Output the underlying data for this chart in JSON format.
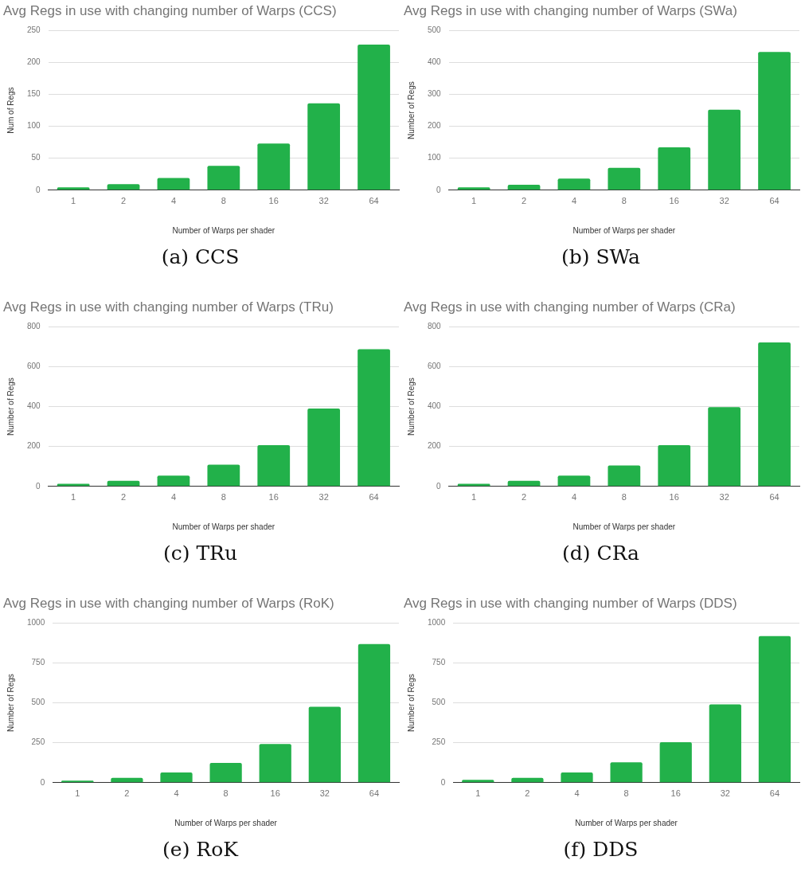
{
  "chart_data": [
    {
      "type": "bar",
      "title": "Avg Regs in use with changing number of Warps (CCS)",
      "xlabel": "Number of Warps per shader",
      "ylabel": "Num of Regs",
      "categories": [
        "1",
        "2",
        "4",
        "8",
        "16",
        "32",
        "64"
      ],
      "values": [
        4.5,
        9.5,
        19,
        38,
        73,
        136,
        228
      ],
      "color": "#22b14a",
      "ylim": [
        0,
        250
      ],
      "yticks": [
        0,
        50,
        100,
        150,
        200,
        250
      ],
      "grid": "y",
      "annotations": [
        "(a) CCS"
      ]
    },
    {
      "type": "bar",
      "title": "Avg Regs in use with changing number of Warps (SWa)",
      "xlabel": "Number of Warps per shader",
      "ylabel": "Number of Regs",
      "categories": [
        "1",
        "2",
        "4",
        "8",
        "16",
        "32",
        "64"
      ],
      "values": [
        9,
        17,
        36,
        70,
        134,
        252,
        433
      ],
      "color": "#22b14a",
      "ylim": [
        0,
        500
      ],
      "yticks": [
        0,
        100,
        200,
        300,
        400,
        500
      ],
      "grid": "y",
      "annotations": [
        "(b) SWa"
      ]
    },
    {
      "type": "bar",
      "title": "Avg Regs in use with changing number of Warps (TRu)",
      "xlabel": "Number of Warps per shader",
      "ylabel": "Number of Regs",
      "categories": [
        "1",
        "2",
        "4",
        "8",
        "16",
        "32",
        "64"
      ],
      "values": [
        13,
        28,
        54,
        109,
        207,
        390,
        688
      ],
      "color": "#22b14a",
      "ylim": [
        0,
        800
      ],
      "yticks": [
        0,
        200,
        400,
        600,
        800
      ],
      "grid": "y",
      "annotations": [
        "(c) TRu"
      ]
    },
    {
      "type": "bar",
      "title": "Avg Regs in use with changing number of Warps (CRa)",
      "xlabel": "Number of Warps per shader",
      "ylabel": "Number of Regs",
      "categories": [
        "1",
        "2",
        "4",
        "8",
        "16",
        "32",
        "64"
      ],
      "values": [
        13,
        28,
        54,
        105,
        207,
        397,
        722
      ],
      "color": "#22b14a",
      "ylim": [
        0,
        800
      ],
      "yticks": [
        0,
        200,
        400,
        600,
        800
      ],
      "grid": "y",
      "annotations": [
        "(d) CRa"
      ]
    },
    {
      "type": "bar",
      "title": "Avg Regs in use with changing number of Warps (RoK)",
      "xlabel": "Number of Warps per shader",
      "ylabel": "Number of Regs",
      "categories": [
        "1",
        "2",
        "4",
        "8",
        "16",
        "32",
        "64"
      ],
      "values": [
        13,
        30,
        64,
        124,
        242,
        476,
        868
      ],
      "color": "#22b14a",
      "ylim": [
        0,
        1000
      ],
      "yticks": [
        0,
        250,
        500,
        750,
        1000
      ],
      "grid": "y",
      "annotations": [
        "(e) RoK"
      ]
    },
    {
      "type": "bar",
      "title": "Avg Regs in use with changing number of Warps (DDS)",
      "xlabel": "Number of Warps per shader",
      "ylabel": "Number of Regs",
      "categories": [
        "1",
        "2",
        "4",
        "8",
        "16",
        "32",
        "64"
      ],
      "values": [
        18,
        30,
        64,
        127,
        254,
        491,
        919
      ],
      "color": "#22b14a",
      "ylim": [
        0,
        1000
      ],
      "yticks": [
        0,
        250,
        500,
        750,
        1000
      ],
      "grid": "y",
      "annotations": [
        "(f) DDS"
      ]
    }
  ]
}
